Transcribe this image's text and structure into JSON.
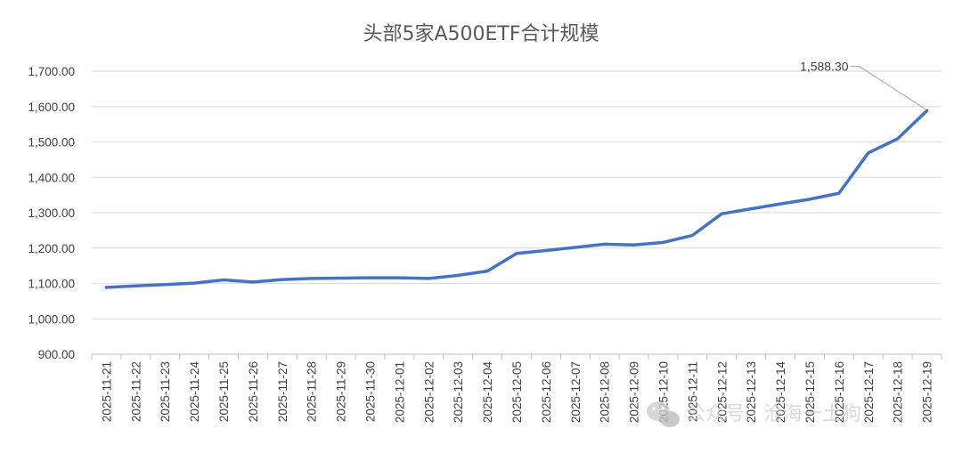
{
  "chart_data": {
    "type": "line",
    "title": "头部5家A500ETF合计规模",
    "xlabel": "",
    "ylabel": "",
    "ylim": [
      900,
      1700
    ],
    "yticks": [
      "900.00",
      "1,000.00",
      "1,100.00",
      "1,200.00",
      "1,300.00",
      "1,400.00",
      "1,500.00",
      "1,600.00",
      "1,700.00"
    ],
    "grid": true,
    "legend": "none",
    "line_color": "#4472c4",
    "categories": [
      "2025-11-21",
      "2025-11-22",
      "2025-11-23",
      "2025-11-24",
      "2025-11-25",
      "2025-11-26",
      "2025-11-27",
      "2025-11-28",
      "2025-11-29",
      "2025-11-30",
      "2025-12-01",
      "2025-12-02",
      "2025-12-03",
      "2025-12-04",
      "2025-12-05",
      "2025-12-06",
      "2025-12-07",
      "2025-12-08",
      "2025-12-09",
      "2025-12-10",
      "2025-12-11",
      "2025-12-12",
      "2025-12-13",
      "2025-12-14",
      "2025-12-15",
      "2025-12-16",
      "2025-12-17",
      "2025-12-18",
      "2025-12-19"
    ],
    "values": [
      1089,
      1093,
      1097,
      1101,
      1110,
      1104,
      1111,
      1114,
      1115,
      1116,
      1116,
      1114,
      1123,
      1135,
      1185,
      1193,
      1202,
      1211,
      1209,
      1216,
      1236,
      1297,
      1311,
      1325,
      1338,
      1355,
      1469,
      1509,
      1588.3
    ],
    "annotations": [
      {
        "label": "1,588.30",
        "category": "2025-12-19"
      }
    ]
  },
  "watermark": {
    "text": "公众号 · 沧海一土狗",
    "icon": "wechat-icon"
  }
}
